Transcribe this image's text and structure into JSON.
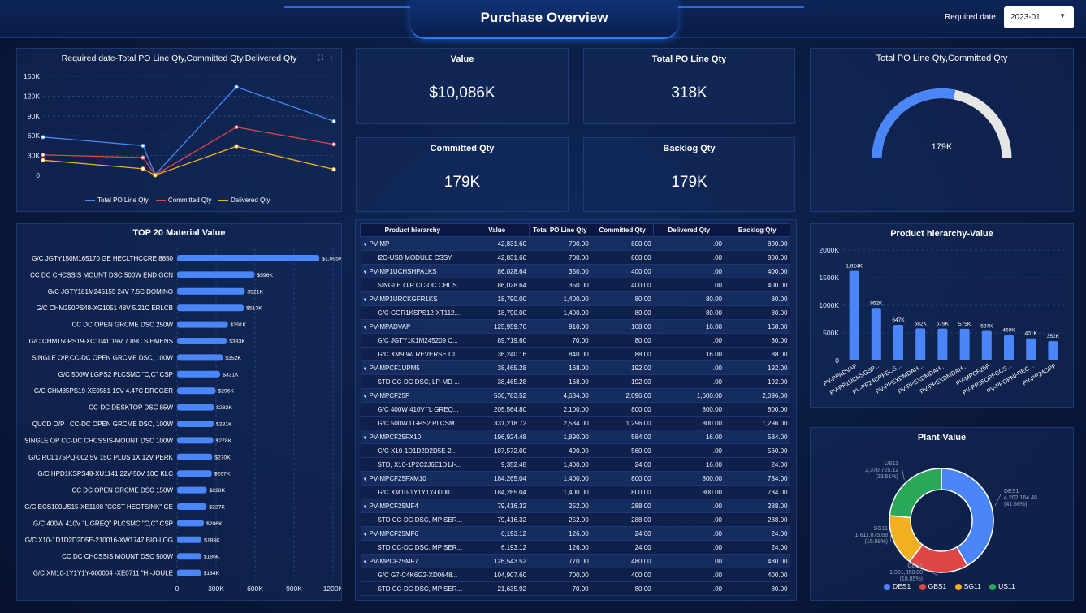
{
  "header": {
    "title": "Purchase Overview",
    "required_date_label": "Required date",
    "required_date_value": "2023-01"
  },
  "colors": {
    "blue": "#4a86f7",
    "red": "#e04545",
    "yellow": "#f2b01e",
    "green": "#2aa85a",
    "gauge_track": "#e6e6e6"
  },
  "kpis": [
    {
      "label": "Value",
      "value": "$10,086K"
    },
    {
      "label": "Total PO Line Qty",
      "value": "318K"
    },
    {
      "label": "Committed Qty",
      "value": "179K"
    },
    {
      "label": "Backlog Qty",
      "value": "179K"
    }
  ],
  "line_chart": {
    "title": "Required date-Total PO Line Qty,Committed Qty,Delivered Qty"
  },
  "gauge": {
    "title": "Total PO Line Qty,Committed Qty",
    "center_label": "179K",
    "fraction": 0.5629
  },
  "material_chart": {
    "title": "TOP 20 Material Value"
  },
  "hierarchy_chart": {
    "title": "Product hierarchy-Value"
  },
  "plant_chart": {
    "title": "Plant-Value"
  },
  "table": {
    "headers": [
      "Product hierarchy",
      "Value",
      "Total PO Line Qty",
      "Committed Qty",
      "Delivered Qty",
      "Backlog Qty"
    ],
    "rows": [
      {
        "level": 0,
        "cells": [
          "PV-MP",
          "42,831.60",
          "700.00",
          "800.00",
          ".00",
          "800.00"
        ]
      },
      {
        "level": 1,
        "cells": [
          "I2C-USB MODULE CSSY",
          "42,831.60",
          "700.00",
          "800.00",
          ".00",
          "800.00"
        ]
      },
      {
        "level": 0,
        "cells": [
          "PV-MP1UCHSHPA1KS",
          "86,028.64",
          "350.00",
          "400.00",
          ".00",
          "400.00"
        ]
      },
      {
        "level": 1,
        "cells": [
          "SINGLE O/P CC-DC CHCS...",
          "86,028.64",
          "350.00",
          "400.00",
          ".00",
          "400.00"
        ]
      },
      {
        "level": 0,
        "cells": [
          "PV-MP1URCKGFR1KS",
          "18,790.00",
          "1,400.00",
          "80.00",
          "80.00",
          "80.00"
        ]
      },
      {
        "level": 1,
        "cells": [
          "G/C GGR1KSPS12-XT112...",
          "18,790.00",
          "1,400.00",
          "80.00",
          "80.00",
          "80.00"
        ]
      },
      {
        "level": 0,
        "cells": [
          "PV-MPADVAP",
          "125,959.76",
          "910.00",
          "168.00",
          "16.00",
          "168.00"
        ]
      },
      {
        "level": 1,
        "cells": [
          "G/C JGTY1K1M245209 C...",
          "89,719.60",
          "70.00",
          "80.00",
          ".00",
          "80.00"
        ]
      },
      {
        "level": 1,
        "cells": [
          "G/C XM9 W/ REVERSE CI...",
          "36,240.16",
          "840.00",
          "88.00",
          "16.00",
          "88.00"
        ]
      },
      {
        "level": 0,
        "cells": [
          "PV-MPCF1UPM5",
          "38,465.28",
          "168.00",
          "192.00",
          ".00",
          "192.00"
        ]
      },
      {
        "level": 1,
        "cells": [
          "STD CC-DC DSC, LP-MD ...",
          "38,465.28",
          "168.00",
          "192.00",
          ".00",
          "192.00"
        ]
      },
      {
        "level": 0,
        "cells": [
          "PV-MPCF25F",
          "536,783.52",
          "4,634.00",
          "2,096.00",
          "1,600.00",
          "2,096.00"
        ]
      },
      {
        "level": 1,
        "cells": [
          "G/C 400W 410V \"L GREQ...",
          "205,564.80",
          "2,100.00",
          "800.00",
          "800.00",
          "800.00"
        ]
      },
      {
        "level": 1,
        "cells": [
          "G/C 500W LGPS2 PLCSM...",
          "331,218.72",
          "2,534.00",
          "1,296.00",
          "800.00",
          "1,296.00"
        ]
      },
      {
        "level": 0,
        "cells": [
          "PV-MPCF25FX10",
          "196,924.48",
          "1,890.00",
          "584.00",
          "16.00",
          "584.00"
        ]
      },
      {
        "level": 1,
        "cells": [
          "G/C X10-1D1D2D2D5E-2...",
          "187,572.00",
          "490.00",
          "560.00",
          ".00",
          "560.00"
        ]
      },
      {
        "level": 1,
        "cells": [
          "STD, X10-1P2C2J6E1D1J-...",
          "9,352.48",
          "1,400.00",
          "24.00",
          "16.00",
          "24.00"
        ]
      },
      {
        "level": 0,
        "cells": [
          "PV-MPCF25FXM10",
          "184,265.04",
          "1,400.00",
          "800.00",
          "800.00",
          "784.00"
        ]
      },
      {
        "level": 1,
        "cells": [
          "G/C XM10-1Y1Y1Y-0000...",
          "184,265.04",
          "1,400.00",
          "800.00",
          "800.00",
          "784.00"
        ]
      },
      {
        "level": 0,
        "cells": [
          "PV-MPCF25MF4",
          "79,416.32",
          "252.00",
          "288.00",
          ".00",
          "288.00"
        ]
      },
      {
        "level": 1,
        "cells": [
          "STD CC-DC DSC, MP SER...",
          "79,416.32",
          "252.00",
          "288.00",
          ".00",
          "288.00"
        ]
      },
      {
        "level": 0,
        "cells": [
          "PV-MPCF25MF6",
          "6,193.12",
          "126.00",
          "24.00",
          ".00",
          "24.00"
        ]
      },
      {
        "level": 1,
        "cells": [
          "STD CC-DC DSC, MP SER...",
          "6,193.12",
          "126.00",
          "24.00",
          ".00",
          "24.00"
        ]
      },
      {
        "level": 0,
        "cells": [
          "PV-MPCF25MF7",
          "126,543.52",
          "770.00",
          "480.00",
          ".00",
          "480.00"
        ]
      },
      {
        "level": 1,
        "cells": [
          "G/C G7-C4K6G2-XD0648...",
          "104,907.60",
          "700.00",
          "400.00",
          ".00",
          "400.00"
        ]
      },
      {
        "level": 1,
        "cells": [
          "STD CC-DC DSC, MP SER...",
          "21,635.92",
          "70.00",
          "80.00",
          ".00",
          "80.00"
        ]
      }
    ]
  },
  "chart_data": [
    {
      "type": "line",
      "title": "Required date-Total PO Line Qty,Committed Qty,Delivered Qty",
      "x": [
        "",
        "",
        "",
        "",
        ""
      ],
      "yticks": [
        "0",
        "30K",
        "60K",
        "90K",
        "120K",
        "150K"
      ],
      "ylim": [
        0,
        150000
      ],
      "series": [
        {
          "name": "Total PO Line Qty",
          "color": "#4a86f7",
          "values": [
            58000,
            45000,
            1000,
            134000,
            82000
          ]
        },
        {
          "name": "Committed Qty",
          "color": "#e04545",
          "values": [
            31000,
            27000,
            500,
            73000,
            47000
          ]
        },
        {
          "name": "Delivered Qty",
          "color": "#f2b01e",
          "values": [
            23000,
            10000,
            200,
            44000,
            9000
          ]
        }
      ]
    },
    {
      "type": "bar",
      "orientation": "horizontal",
      "title": "TOP 20 Material Value",
      "categories": [
        "G/C JGTY150M165170 GE HECLTHCCRE 8850",
        "CC DC CHCSSIS MOUNT DSC 500W END GCN",
        "G/C JGTY181M245155 24V 7.5C DOMINO",
        "G/C CHM250PS48-XG1051 48V 5.21C ERLCB",
        "CC DC OPEN GRCME DSC 250W",
        "G/C CHM150PS19-XC1041 19V 7.89C SIEMENS",
        "SINGLE O/P,CC-DC OPEN GRCME DSC, 100W",
        "G/C 500W LGPS2 PLCSMC \"C,C\" CSP",
        "G/C CHM85PS19-XE0581 19V 4.47C DRCGER",
        "CC-DC DESKTOP DSC 85W",
        "QUCD O/P , CC-DC OPEN GRCME DSC, 100W",
        "SINGLE OP CC-DC CHCSSIS-MOUNT DSC 100W",
        "G/C RCL175PQ-002 5V 15C PLUS 1X 12V PERK",
        "G/C HPD1KSPS48-XU1141 22V-50V 10C KLC",
        "CC DC OPEN GRCME DSC 150W",
        "G/C ECS100US15-XE1108 \"CCST HECTSINK\" GE",
        "G/C 400W 410V \"L GREQ\" PLCSMC \"C,C\" CSP",
        "G/C X10-1D1D2D2D5E-210016-XW1747 BIO-LOG",
        "CC DC CHCSSIS MOUNT DSC 500W",
        "G/C XM10-1Y1Y1Y-000004 -XE0711 \"HI-JOULE"
      ],
      "values": [
        1095,
        596,
        521,
        513,
        391,
        383,
        352,
        331,
        296,
        283,
        281,
        278,
        270,
        267,
        228,
        227,
        206,
        188,
        186,
        184
      ],
      "labels": [
        "$1,095K",
        "$596K",
        "$521K",
        "$513K",
        "$391K",
        "$383K",
        "$352K",
        "$331K",
        "$296K",
        "$283K",
        "$281K",
        "$278K",
        "$270K",
        "$267K",
        "$228K",
        "$227K",
        "$206K",
        "$188K",
        "$186K",
        "$184K"
      ],
      "xticks": [
        "0",
        "300K",
        "600K",
        "900K",
        "1200K"
      ],
      "xlim": [
        0,
        1200
      ],
      "unit": "K"
    },
    {
      "type": "bar",
      "title": "Product hierarchy-Value",
      "categories": [
        "PV-PPADVAP",
        "PV-PP1UCHSGSP...",
        "PV-PP24OPFECS...",
        "PV-PPEXDMDAH...",
        "PV-PPEXDMDAH...",
        "PV-PPEXDMDAH...",
        "PV-MPCF25F",
        "PV-PP35OPFGCS...",
        "PV-PPOPNFREC...",
        "PV-PP24OPF"
      ],
      "values": [
        1624,
        952,
        647,
        582,
        579,
        575,
        537,
        460,
        401,
        352
      ],
      "labels": [
        "1,624K",
        "952K",
        "647K",
        "582K",
        "579K",
        "575K",
        "537K",
        "460K",
        "401K",
        "352K"
      ],
      "yticks": [
        "0",
        "500K",
        "1000K",
        "1500K",
        "2000K"
      ],
      "ylim": [
        0,
        2000
      ],
      "unit": "K"
    },
    {
      "type": "pie",
      "style": "donut",
      "title": "Plant-Value",
      "slices": [
        {
          "name": "DES1",
          "value": 4202164.48,
          "label": "4,202,164.48",
          "pct": "(41.66%)",
          "color": "#4a86f7"
        },
        {
          "name": "GBS1",
          "value": 1901358.0,
          "label": "1,901,358.00",
          "pct": "(18.85%)",
          "color": "#e04545"
        },
        {
          "name": "SG11",
          "value": 1611875.68,
          "label": "1,611,875.68",
          "pct": "(15.98%)",
          "color": "#f2b01e"
        },
        {
          "name": "US11",
          "value": 2370725.12,
          "label": "2,370,725.12",
          "pct": "(23.51%)",
          "color": "#2aa85a"
        }
      ]
    }
  ]
}
